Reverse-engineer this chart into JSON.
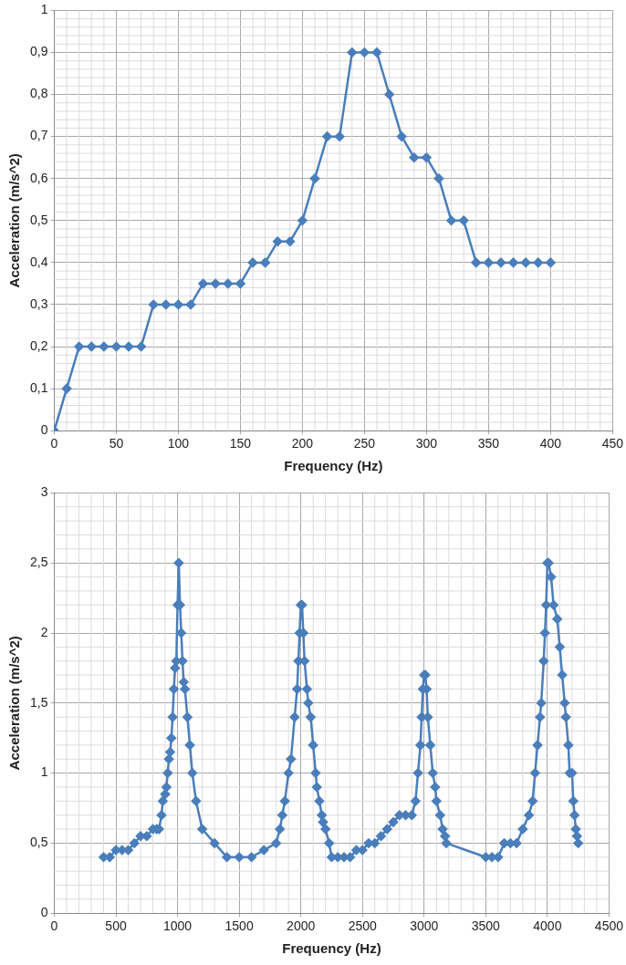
{
  "chart_data": [
    {
      "type": "line",
      "xlabel": "Frequency (Hz)",
      "ylabel": "Acceleration (m/s^2)",
      "marker": "diamond",
      "line_style": "solid",
      "grid": true,
      "legend": false,
      "xlim": [
        0,
        450
      ],
      "xticks": [
        0,
        50,
        100,
        150,
        200,
        250,
        300,
        350,
        400,
        450
      ],
      "ylim": [
        0,
        1
      ],
      "yticks": [
        0,
        {
          "value": 0.1,
          "label": "0,1"
        },
        {
          "value": 0.2,
          "label": "0,2"
        },
        {
          "value": 0.3,
          "label": "0,3"
        },
        {
          "value": 0.4,
          "label": "0,4"
        },
        {
          "value": 0.5,
          "label": "0,5"
        },
        {
          "value": 0.6,
          "label": "0,6"
        },
        {
          "value": 0.7,
          "label": "0,7"
        },
        {
          "value": 0.8,
          "label": "0,8"
        },
        {
          "value": 0.9,
          "label": "0,9"
        },
        1
      ],
      "series": [
        {
          "color": "#4a7ebb",
          "x": [
            0,
            10,
            20,
            30,
            40,
            50,
            60,
            70,
            80,
            90,
            100,
            110,
            120,
            130,
            140,
            150,
            160,
            170,
            180,
            190,
            200,
            210,
            220,
            230,
            240,
            250,
            260,
            270,
            280,
            290,
            300,
            310,
            320,
            330,
            340,
            350,
            360,
            370,
            380,
            390,
            400
          ],
          "values": [
            0,
            0.1,
            0.2,
            0.2,
            0.2,
            0.2,
            0.2,
            0.2,
            0.3,
            0.3,
            0.3,
            0.3,
            0.35,
            0.35,
            0.35,
            0.35,
            0.4,
            0.4,
            0.45,
            0.45,
            0.5,
            0.6,
            0.7,
            0.7,
            0.9,
            0.9,
            0.9,
            0.8,
            0.7,
            0.65,
            0.65,
            0.6,
            0.5,
            0.5,
            0.4,
            0.4,
            0.4,
            0.4,
            0.4,
            0.4,
            0.4
          ]
        }
      ]
    },
    {
      "type": "line",
      "xlabel": "Frequency (Hz)",
      "ylabel": "Acceleration (m/s^2)",
      "marker": "diamond",
      "line_style": "solid",
      "grid": true,
      "legend": false,
      "xlim": [
        0,
        4500
      ],
      "xticks": [
        0,
        500,
        1000,
        1500,
        2000,
        2500,
        3000,
        3500,
        4000,
        4500
      ],
      "ylim": [
        0,
        3
      ],
      "yticks": [
        0,
        {
          "value": 0.5,
          "label": "0,5"
        },
        1,
        {
          "value": 1.5,
          "label": "1,5"
        },
        2,
        {
          "value": 2.5,
          "label": "2,5"
        },
        3
      ],
      "series": [
        {
          "color": "#4a7ebb",
          "x": [
            400,
            450,
            500,
            550,
            600,
            650,
            700,
            750,
            800,
            830,
            850,
            870,
            880,
            900,
            910,
            920,
            930,
            940,
            950,
            960,
            970,
            980,
            990,
            1000,
            1010,
            1020,
            1030,
            1040,
            1050,
            1060,
            1080,
            1100,
            1120,
            1150,
            1200,
            1300,
            1400,
            1500,
            1600,
            1700,
            1800,
            1830,
            1850,
            1870,
            1900,
            1920,
            1950,
            1970,
            1980,
            1990,
            2000,
            2010,
            2020,
            2030,
            2050,
            2060,
            2080,
            2100,
            2120,
            2130,
            2150,
            2170,
            2180,
            2200,
            2230,
            2250,
            2300,
            2350,
            2400,
            2450,
            2500,
            2550,
            2600,
            2650,
            2700,
            2750,
            2800,
            2850,
            2900,
            2930,
            2950,
            2970,
            2980,
            2990,
            3000,
            3010,
            3020,
            3030,
            3050,
            3070,
            3090,
            3100,
            3130,
            3150,
            3170,
            3180,
            3500,
            3550,
            3600,
            3650,
            3700,
            3750,
            3800,
            3850,
            3880,
            3900,
            3920,
            3940,
            3950,
            3970,
            3980,
            3990,
            4000,
            4010,
            4030,
            4050,
            4080,
            4100,
            4120,
            4140,
            4150,
            4170,
            4180,
            4200,
            4210,
            4220,
            4230,
            4240,
            4250
          ],
          "values": [
            0.4,
            0.4,
            0.45,
            0.45,
            0.45,
            0.5,
            0.55,
            0.55,
            0.6,
            0.6,
            0.6,
            0.7,
            0.8,
            0.85,
            0.9,
            1.0,
            1.1,
            1.15,
            1.25,
            1.4,
            1.6,
            1.75,
            1.8,
            2.2,
            2.5,
            2.2,
            2.0,
            1.8,
            1.65,
            1.6,
            1.4,
            1.2,
            1.0,
            0.8,
            0.6,
            0.5,
            0.4,
            0.4,
            0.4,
            0.45,
            0.5,
            0.6,
            0.7,
            0.8,
            1.0,
            1.1,
            1.4,
            1.6,
            1.8,
            2.0,
            2.2,
            2.2,
            2.0,
            1.8,
            1.6,
            1.5,
            1.4,
            1.2,
            1.0,
            0.9,
            0.8,
            0.7,
            0.65,
            0.6,
            0.5,
            0.4,
            0.4,
            0.4,
            0.4,
            0.45,
            0.45,
            0.5,
            0.5,
            0.55,
            0.6,
            0.65,
            0.7,
            0.7,
            0.7,
            0.8,
            1.0,
            1.2,
            1.4,
            1.6,
            1.7,
            1.7,
            1.6,
            1.4,
            1.2,
            1.0,
            0.9,
            0.8,
            0.7,
            0.6,
            0.55,
            0.5,
            0.4,
            0.4,
            0.4,
            0.5,
            0.5,
            0.5,
            0.6,
            0.7,
            0.8,
            1.0,
            1.2,
            1.4,
            1.5,
            1.8,
            2.0,
            2.2,
            2.5,
            2.5,
            2.4,
            2.2,
            2.1,
            1.9,
            1.7,
            1.5,
            1.4,
            1.2,
            1.0,
            1.0,
            0.8,
            0.7,
            0.6,
            0.55,
            0.5
          ]
        }
      ]
    }
  ]
}
